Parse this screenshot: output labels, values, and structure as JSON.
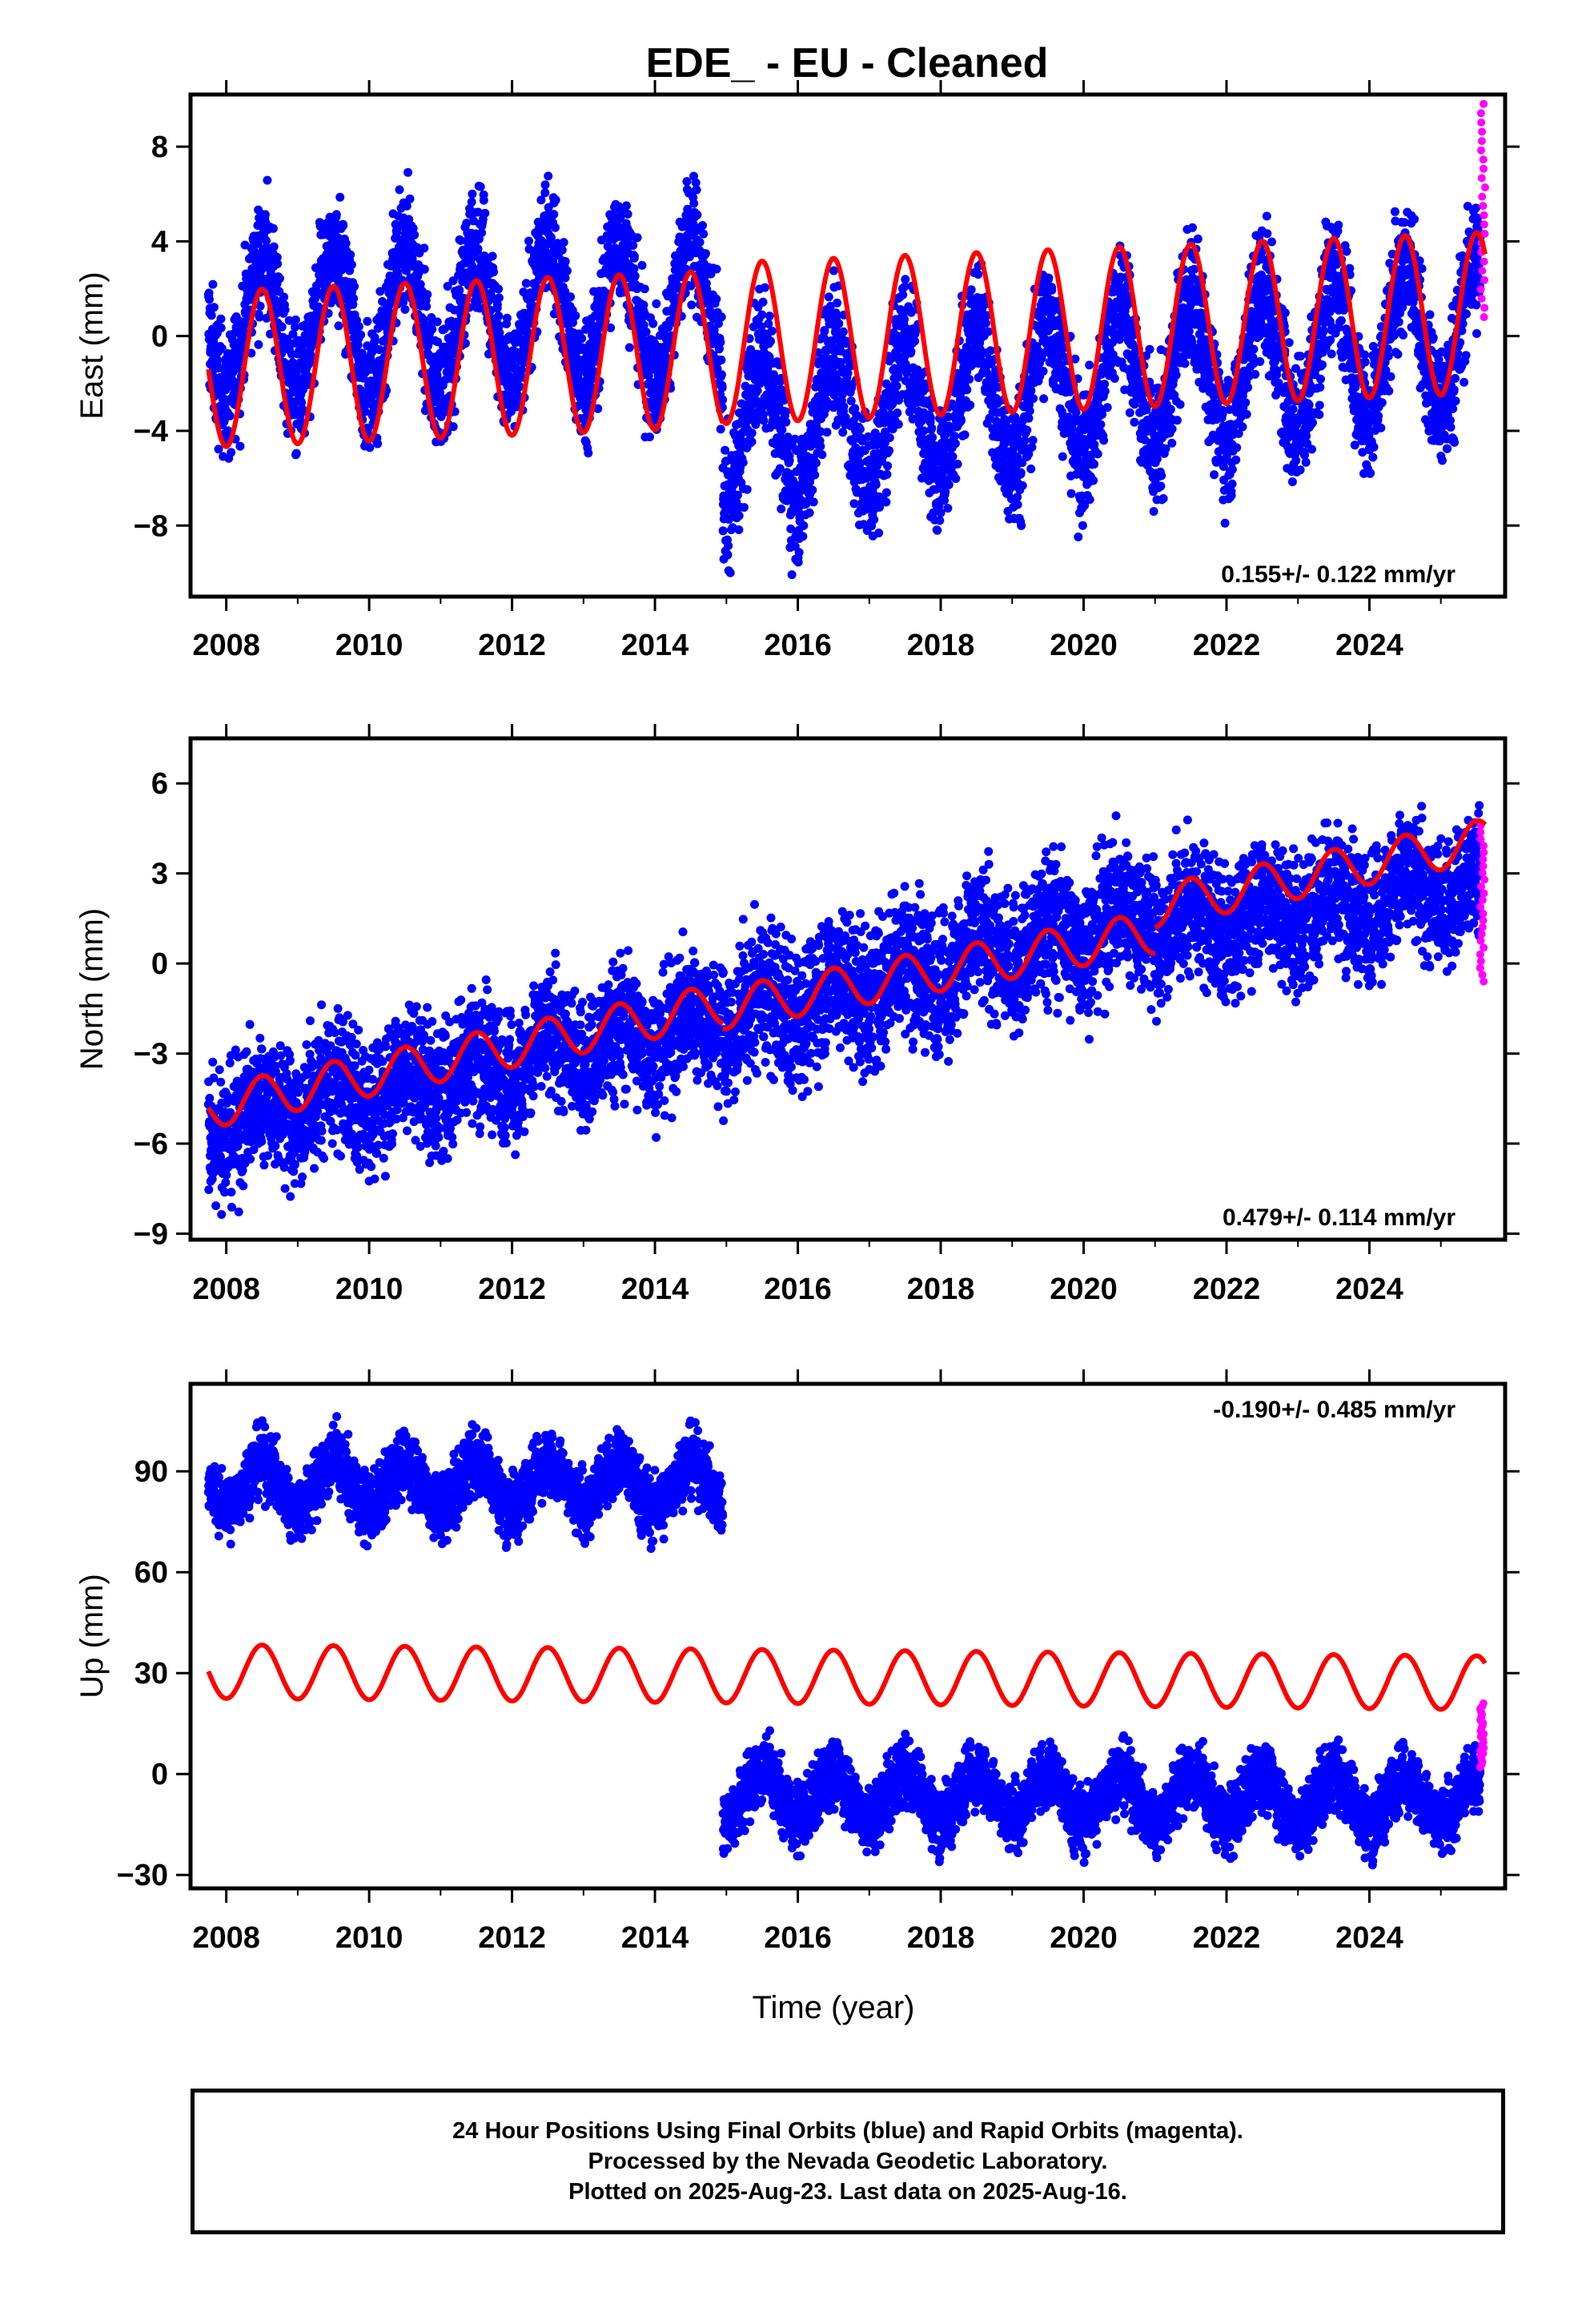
{
  "title": "EDE_  - EU - Cleaned",
  "footer": {
    "line1": "24 Hour Positions Using Final Orbits (blue) and Rapid Orbits (magenta).",
    "line2": "Processed by the Nevada Geodetic Laboratory.",
    "line3": "Plotted on 2025-Aug-23. Last data on 2025-Aug-16."
  },
  "colors": {
    "final": "#0000ff",
    "rapid": "#ff00ff",
    "model": "#ff0000",
    "frame": "#000000"
  },
  "chart_data": [
    {
      "type": "scatter",
      "ylabel": "East (mm)",
      "xlabel": "",
      "xlim": [
        2007.5,
        2025.9
      ],
      "ylim": [
        -11,
        10.2
      ],
      "xticks": [
        2008,
        2010,
        2012,
        2014,
        2016,
        2018,
        2020,
        2022,
        2024
      ],
      "yticks": [
        8,
        4,
        0,
        -4,
        -8
      ],
      "ytick_labels": [
        "8",
        "4",
        "0",
        "−4",
        "−8"
      ],
      "rate": "0.155+/- 0.122 mm/yr",
      "data_start": 2007.75,
      "data_end": 2025.62,
      "rapid_start": 2025.55,
      "final_series": {
        "segments": [
          {
            "start": 2007.75,
            "end": 2014.95,
            "offset": 0.4,
            "trend": 0.12,
            "amp": 3.0,
            "noise": 1.3
          },
          {
            "start": 2014.95,
            "end": 2025.55,
            "offset": -4.2,
            "trend": 0.42,
            "amp": 3.0,
            "noise": 1.4
          }
        ]
      },
      "model_series": {
        "segments": [
          {
            "start": 2007.75,
            "end": 2014.95,
            "offset": -1.4,
            "trend": 0.12,
            "amp": 3.3
          },
          {
            "start": 2014.95,
            "end": 2025.62,
            "offset": -0.3,
            "trend": 0.12,
            "amp": 3.4
          }
        ]
      },
      "rapid_range": [
        0.8,
        9.8
      ]
    },
    {
      "type": "scatter",
      "ylabel": "North (mm)",
      "xlabel": "",
      "xlim": [
        2007.5,
        2025.9
      ],
      "ylim": [
        -9.2,
        7.5
      ],
      "xticks": [
        2008,
        2010,
        2012,
        2014,
        2016,
        2018,
        2020,
        2022,
        2024
      ],
      "yticks": [
        6,
        3,
        0,
        -3,
        -6,
        -9
      ],
      "ytick_labels": [
        "6",
        "3",
        "0",
        "−3",
        "−6",
        "−9"
      ],
      "rate": "0.479+/- 0.114 mm/yr",
      "data_start": 2007.75,
      "data_end": 2025.62,
      "rapid_start": 2025.55,
      "final_series": {
        "segments": [
          {
            "start": 2007.75,
            "end": 2014.95,
            "offset": -5.3,
            "trend": 0.48,
            "amp": 0.6,
            "noise": 1.1
          },
          {
            "start": 2014.95,
            "end": 2021.0,
            "offset": -1.9,
            "trend": 0.6,
            "amp": 0.6,
            "noise": 1.2
          },
          {
            "start": 2021.0,
            "end": 2025.55,
            "offset": 1.2,
            "trend": 0.3,
            "amp": 0.6,
            "noise": 1.1
          }
        ]
      },
      "model_series": {
        "segments": [
          {
            "start": 2007.75,
            "end": 2014.95,
            "offset": -4.8,
            "trend": 0.48,
            "amp": 0.7
          },
          {
            "start": 2014.95,
            "end": 2021.0,
            "offset": -1.5,
            "trend": 0.42,
            "amp": 0.7
          },
          {
            "start": 2021.0,
            "end": 2025.62,
            "offset": 1.9,
            "trend": 0.48,
            "amp": 0.7
          }
        ]
      },
      "rapid_range": [
        -0.6,
        4.6
      ]
    },
    {
      "type": "scatter",
      "ylabel": "Up (mm)",
      "xlabel": "Time (year)",
      "xlim": [
        2007.5,
        2025.9
      ],
      "ylim": [
        -34,
        116
      ],
      "xticks": [
        2008,
        2010,
        2012,
        2014,
        2016,
        2018,
        2020,
        2022,
        2024
      ],
      "yticks": [
        90,
        60,
        30,
        0,
        -30
      ],
      "ytick_labels": [
        "90",
        "60",
        "30",
        "0",
        "−30"
      ],
      "rate": "-0.190+/- 0.485 mm/yr",
      "data_start": 2007.75,
      "data_end": 2025.62,
      "rapid_start": 2025.55,
      "final_series": {
        "segments": [
          {
            "start": 2007.75,
            "end": 2014.95,
            "offset": 86,
            "trend": 0.0,
            "amp": 7,
            "noise": 5
          },
          {
            "start": 2014.95,
            "end": 2025.55,
            "offset": -6,
            "trend": -0.19,
            "amp": 7,
            "noise": 5
          }
        ]
      },
      "model_series": {
        "segments": [
          {
            "start": 2007.75,
            "end": 2025.62,
            "offset": 30.5,
            "trend": -0.19,
            "amp": 8
          }
        ]
      },
      "rapid_range": [
        2,
        21
      ]
    }
  ]
}
